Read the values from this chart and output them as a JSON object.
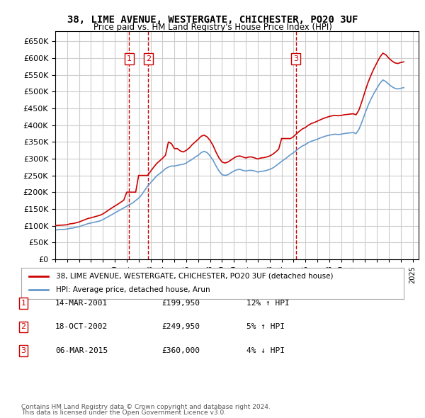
{
  "title": "38, LIME AVENUE, WESTERGATE, CHICHESTER, PO20 3UF",
  "subtitle": "Price paid vs. HM Land Registry's House Price Index (HPI)",
  "ylabel": "",
  "ylim": [
    0,
    680000
  ],
  "yticks": [
    0,
    50000,
    100000,
    150000,
    200000,
    250000,
    300000,
    350000,
    400000,
    450000,
    500000,
    550000,
    600000,
    650000
  ],
  "xlim_start": 1995.0,
  "xlim_end": 2025.5,
  "bg_color": "#ffffff",
  "grid_color": "#cccccc",
  "sale_color": "#cc0000",
  "hpi_color": "#6699cc",
  "sale_line_color": "#cc0000",
  "annotation_box_color": "#cc0000",
  "purchases": [
    {
      "num": 1,
      "date_label": "14-MAR-2001",
      "price_label": "£199,950",
      "pct_label": "12% ↑ HPI",
      "date_x": 2001.2,
      "price_y": 199950
    },
    {
      "num": 2,
      "date_label": "18-OCT-2002",
      "price_label": "£249,950",
      "pct_label": "5% ↑ HPI",
      "date_x": 2002.8,
      "price_y": 249950
    },
    {
      "num": 3,
      "date_label": "06-MAR-2015",
      "price_label": "£360,000",
      "pct_label": "4% ↓ HPI",
      "date_x": 2015.2,
      "price_y": 360000
    }
  ],
  "legend_sale_label": "38, LIME AVENUE, WESTERGATE, CHICHESTER, PO20 3UF (detached house)",
  "legend_hpi_label": "HPI: Average price, detached house, Arun",
  "footer1": "Contains HM Land Registry data © Crown copyright and database right 2024.",
  "footer2": "This data is licensed under the Open Government Licence v3.0.",
  "hpi_data": {
    "years": [
      1995.0,
      1995.25,
      1995.5,
      1995.75,
      1996.0,
      1996.25,
      1996.5,
      1996.75,
      1997.0,
      1997.25,
      1997.5,
      1997.75,
      1998.0,
      1998.25,
      1998.5,
      1998.75,
      1999.0,
      1999.25,
      1999.5,
      1999.75,
      2000.0,
      2000.25,
      2000.5,
      2000.75,
      2001.0,
      2001.25,
      2001.5,
      2001.75,
      2002.0,
      2002.25,
      2002.5,
      2002.75,
      2003.0,
      2003.25,
      2003.5,
      2003.75,
      2004.0,
      2004.25,
      2004.5,
      2004.75,
      2005.0,
      2005.25,
      2005.5,
      2005.75,
      2006.0,
      2006.25,
      2006.5,
      2006.75,
      2007.0,
      2007.25,
      2007.5,
      2007.75,
      2008.0,
      2008.25,
      2008.5,
      2008.75,
      2009.0,
      2009.25,
      2009.5,
      2009.75,
      2010.0,
      2010.25,
      2010.5,
      2010.75,
      2011.0,
      2011.25,
      2011.5,
      2011.75,
      2012.0,
      2012.25,
      2012.5,
      2012.75,
      2013.0,
      2013.25,
      2013.5,
      2013.75,
      2014.0,
      2014.25,
      2014.5,
      2014.75,
      2015.0,
      2015.25,
      2015.5,
      2015.75,
      2016.0,
      2016.25,
      2016.5,
      2016.75,
      2017.0,
      2017.25,
      2017.5,
      2017.75,
      2018.0,
      2018.25,
      2018.5,
      2018.75,
      2019.0,
      2019.25,
      2019.5,
      2019.75,
      2020.0,
      2020.25,
      2020.5,
      2020.75,
      2021.0,
      2021.25,
      2021.5,
      2021.75,
      2022.0,
      2022.25,
      2022.5,
      2022.75,
      2023.0,
      2023.25,
      2023.5,
      2023.75,
      2024.0,
      2024.25
    ],
    "values": [
      87000,
      88000,
      88500,
      89000,
      90000,
      92000,
      93000,
      95000,
      97000,
      100000,
      103000,
      106000,
      108000,
      110000,
      112000,
      114000,
      118000,
      123000,
      128000,
      133000,
      138000,
      143000,
      148000,
      153000,
      158000,
      163000,
      168000,
      175000,
      182000,
      192000,
      205000,
      218000,
      228000,
      238000,
      248000,
      255000,
      262000,
      270000,
      275000,
      278000,
      278000,
      280000,
      282000,
      283000,
      287000,
      293000,
      298000,
      305000,
      310000,
      318000,
      322000,
      318000,
      308000,
      295000,
      278000,
      263000,
      252000,
      250000,
      252000,
      258000,
      263000,
      267000,
      268000,
      265000,
      263000,
      265000,
      265000,
      263000,
      260000,
      262000,
      263000,
      265000,
      268000,
      272000,
      278000,
      285000,
      292000,
      298000,
      305000,
      312000,
      318000,
      325000,
      332000,
      338000,
      342000,
      348000,
      352000,
      355000,
      358000,
      362000,
      365000,
      368000,
      370000,
      372000,
      373000,
      372000,
      373000,
      375000,
      376000,
      377000,
      378000,
      375000,
      388000,
      410000,
      435000,
      458000,
      478000,
      495000,
      510000,
      525000,
      535000,
      530000,
      522000,
      515000,
      510000,
      508000,
      510000,
      512000
    ]
  },
  "red_line_data": {
    "years": [
      1995.0,
      1995.25,
      1995.5,
      1995.75,
      1996.0,
      1996.25,
      1996.5,
      1996.75,
      1997.0,
      1997.25,
      1997.5,
      1997.75,
      1998.0,
      1998.25,
      1998.5,
      1998.75,
      1999.0,
      1999.25,
      1999.5,
      1999.75,
      2000.0,
      2000.25,
      2000.5,
      2000.75,
      2001.0,
      2001.25,
      2001.5,
      2001.75,
      2002.0,
      2002.25,
      2002.5,
      2002.75,
      2003.0,
      2003.25,
      2003.5,
      2003.75,
      2004.0,
      2004.25,
      2004.5,
      2004.75,
      2005.0,
      2005.25,
      2005.5,
      2005.75,
      2006.0,
      2006.25,
      2006.5,
      2006.75,
      2007.0,
      2007.25,
      2007.5,
      2007.75,
      2008.0,
      2008.25,
      2008.5,
      2008.75,
      2009.0,
      2009.25,
      2009.5,
      2009.75,
      2010.0,
      2010.25,
      2010.5,
      2010.75,
      2011.0,
      2011.25,
      2011.5,
      2011.75,
      2012.0,
      2012.25,
      2012.5,
      2012.75,
      2013.0,
      2013.25,
      2013.5,
      2013.75,
      2014.0,
      2014.25,
      2014.5,
      2014.75,
      2015.0,
      2015.25,
      2015.5,
      2015.75,
      2016.0,
      2016.25,
      2016.5,
      2016.75,
      2017.0,
      2017.25,
      2017.5,
      2017.75,
      2018.0,
      2018.25,
      2018.5,
      2018.75,
      2019.0,
      2019.25,
      2019.5,
      2019.75,
      2020.0,
      2020.25,
      2020.5,
      2020.75,
      2021.0,
      2021.25,
      2021.5,
      2021.75,
      2022.0,
      2022.25,
      2022.5,
      2022.75,
      2023.0,
      2023.25,
      2023.5,
      2023.75,
      2024.0,
      2024.25
    ],
    "values": [
      100000,
      101000,
      101500,
      102000,
      103000,
      105500,
      106500,
      108500,
      111000,
      114500,
      118000,
      121500,
      123500,
      126000,
      128500,
      131000,
      135000,
      141000,
      147000,
      153000,
      158500,
      164000,
      170000,
      176000,
      199950,
      199950,
      199950,
      199950,
      249950,
      249950,
      249950,
      249950,
      262000,
      274000,
      285000,
      293000,
      301000,
      310000,
      350000,
      345000,
      330000,
      330000,
      323000,
      320000,
      325000,
      332000,
      342000,
      350000,
      358000,
      367000,
      370000,
      365000,
      354000,
      339000,
      319000,
      302000,
      290000,
      287000,
      290000,
      296000,
      302000,
      307000,
      308000,
      305000,
      302000,
      305000,
      305000,
      302000,
      299000,
      302000,
      303000,
      305000,
      308000,
      313000,
      320000,
      328000,
      360000,
      360000,
      360000,
      360000,
      366000,
      374000,
      382000,
      389000,
      393000,
      400000,
      405000,
      408000,
      412000,
      416000,
      420000,
      423000,
      426000,
      428000,
      429000,
      428000,
      429000,
      431000,
      432000,
      433000,
      434000,
      431000,
      446000,
      472000,
      500000,
      527000,
      549000,
      569000,
      586000,
      603000,
      615000,
      610000,
      600000,
      592000,
      586000,
      584000,
      587000,
      589000
    ]
  }
}
